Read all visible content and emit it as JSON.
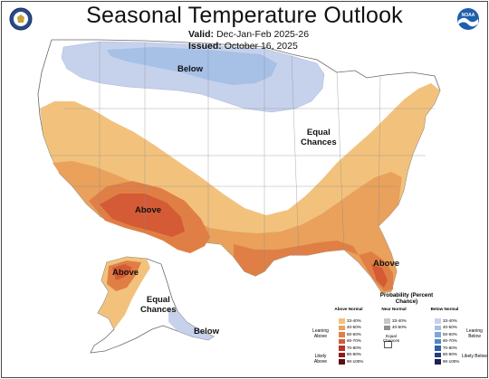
{
  "title": "Seasonal Temperature Outlook",
  "valid_label": "Valid:",
  "valid_value": "Dec-Jan-Feb 2025-26",
  "issued_label": "Issued:",
  "issued_value": "October 16, 2025",
  "logos": {
    "left": "doc-seal",
    "right": "noaa-logo",
    "right_text": "NOAA"
  },
  "map_labels": {
    "below_north": "Below",
    "equal_east_1": "Equal",
    "equal_east_2": "Chances",
    "above_southwest": "Above",
    "above_florida": "Above",
    "above_alaska": "Above",
    "equal_alaska_1": "Equal",
    "equal_alaska_2": "Chances",
    "below_alaska": "Below"
  },
  "legend": {
    "title": "Probability (Percent Chance)",
    "above_header": "Above Normal",
    "near_header": "Near Normal",
    "below_header": "Below Normal",
    "above_ranges": [
      "33-40%",
      "40-50%",
      "50-60%",
      "60-70%",
      "70-80%",
      "80-90%",
      "90-100%"
    ],
    "near_ranges": [
      "33-40%",
      "40-50%"
    ],
    "below_ranges": [
      "33-40%",
      "40-50%",
      "50-60%",
      "60-70%",
      "70-80%",
      "80-90%",
      "90-100%"
    ],
    "equal_chances": "Equal Chances",
    "leaning_above": "Leaning Above",
    "likely_above": "Likely Above",
    "leaning_below": "Leaning Below",
    "likely_below": "Likely Below",
    "colors": {
      "above": [
        "#f2c27d",
        "#e9a15c",
        "#e07f45",
        "#d45b35",
        "#b8332a",
        "#8c1c1c",
        "#5c0d0d"
      ],
      "near": [
        "#c8c8c8",
        "#8f8f8f"
      ],
      "below": [
        "#c6d2ec",
        "#a6c0e6",
        "#7ea6da",
        "#4f86c9",
        "#2f5ea8",
        "#243f7e",
        "#1d1f55"
      ]
    }
  }
}
